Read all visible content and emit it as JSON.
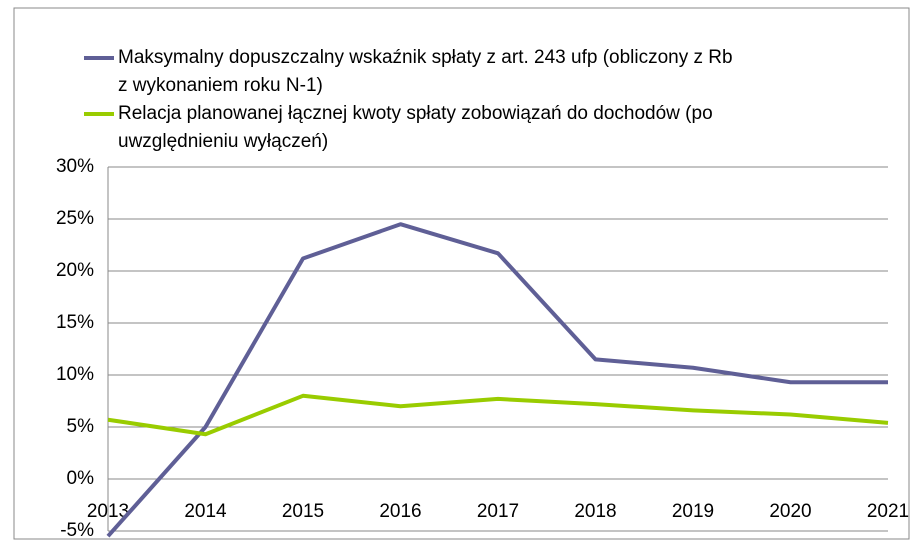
{
  "chart_data": {
    "type": "line",
    "categories": [
      "2013",
      "2014",
      "2015",
      "2016",
      "2017",
      "2018",
      "2019",
      "2020",
      "2021"
    ],
    "series": [
      {
        "name": "Maksymalny dopuszczalny wskaźnik spłaty z art. 243 ufp (obliczony z Rb z wykonaniem roku N-1)",
        "color": "#5f5f96",
        "values": [
          -5.5,
          5.0,
          21.2,
          24.5,
          21.7,
          11.5,
          10.7,
          9.3,
          9.3
        ]
      },
      {
        "name": "Relacja planowanej łącznej kwoty spłaty zobowiązań do dochodów (po uwzględnieniu wyłączeń)",
        "color": "#99cc00",
        "values": [
          5.7,
          4.3,
          8.0,
          7.0,
          7.7,
          7.2,
          6.6,
          6.2,
          5.4
        ]
      }
    ],
    "ylim": [
      -5,
      30
    ],
    "yticks": [
      {
        "value": -5,
        "label": "-5%"
      },
      {
        "value": 0,
        "label": "0%"
      },
      {
        "value": 5,
        "label": "5%"
      },
      {
        "value": 10,
        "label": "10%"
      },
      {
        "value": 15,
        "label": "15%"
      },
      {
        "value": 20,
        "label": "20%"
      },
      {
        "value": 25,
        "label": "25%"
      },
      {
        "value": 30,
        "label": "30%"
      }
    ],
    "grid": true,
    "legend": "top"
  }
}
